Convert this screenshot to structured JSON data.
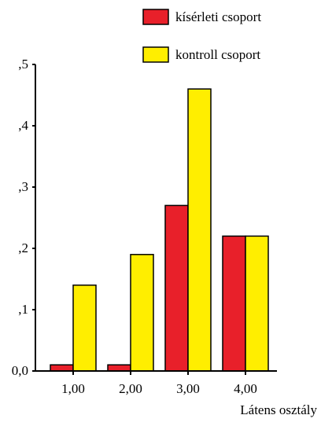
{
  "chart_data": {
    "type": "bar",
    "categories": [
      "1,00",
      "2,00",
      "3,00",
      "4,00"
    ],
    "series": [
      {
        "name": "kísérleti csoport",
        "color": "#e8202a",
        "values": [
          0.01,
          0.01,
          0.27,
          0.22
        ]
      },
      {
        "name": "kontroll csoport",
        "color": "#ffee00",
        "values": [
          0.14,
          0.19,
          0.46,
          0.22
        ]
      }
    ],
    "y_ticks": [
      {
        "value": 0.0,
        "label": "0,0"
      },
      {
        "value": 0.1,
        "label": ",1"
      },
      {
        "value": 0.2,
        "label": ",2"
      },
      {
        "value": 0.3,
        "label": ",3"
      },
      {
        "value": 0.4,
        "label": ",4"
      },
      {
        "value": 0.5,
        "label": ",5"
      }
    ],
    "ylim": [
      0,
      0.5
    ],
    "title": "",
    "xlabel": "Látens osztály",
    "ylabel": "",
    "legend_position": "top-right",
    "grid": false
  }
}
